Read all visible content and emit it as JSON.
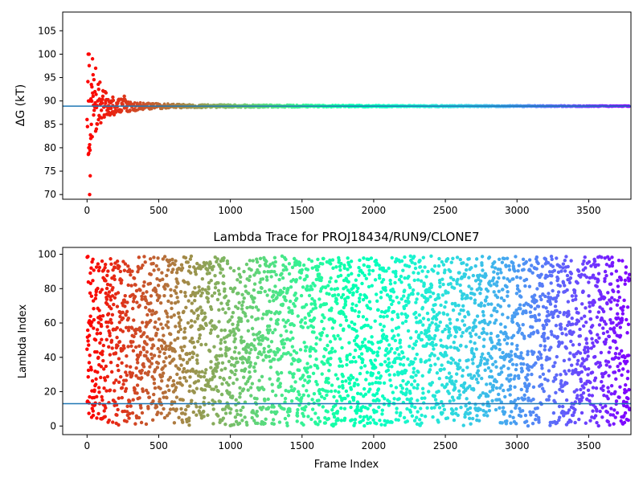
{
  "chart_data": [
    {
      "type": "scatter",
      "title": "",
      "xlabel": "",
      "ylabel": "ΔG (kT)",
      "xlim": [
        -170,
        3795
      ],
      "ylim": [
        69,
        109
      ],
      "xticks": [
        0,
        500,
        1000,
        1500,
        2000,
        2500,
        3000,
        3500
      ],
      "yticks": [
        70,
        75,
        80,
        85,
        90,
        95,
        100,
        105
      ],
      "grid": false,
      "colormap": "rainbow (red at frame 0 → purple at last frame)",
      "hline": {
        "y": 88.9,
        "color": "#1f77b4"
      },
      "series": [
        {
          "description": "converging free-energy estimate per frame",
          "points": [
            [
              8,
              100
            ],
            [
              14,
              100
            ],
            [
              20,
              90
            ],
            [
              10,
              90
            ],
            [
              16,
              80
            ],
            [
              12,
              80
            ],
            [
              18,
              70
            ],
            [
              22,
              74
            ],
            [
              26,
              82
            ],
            [
              30,
              85
            ],
            [
              34,
              93
            ],
            [
              38,
              99
            ],
            [
              42,
              91
            ],
            [
              46,
              87
            ],
            [
              50,
              88
            ],
            [
              55,
              92
            ],
            [
              60,
              97
            ],
            [
              65,
              84
            ],
            [
              70,
              89
            ],
            [
              80,
              86
            ],
            [
              90,
              94
            ],
            [
              100,
              88
            ],
            [
              110,
              91
            ],
            [
              120,
              87
            ],
            [
              130,
              90
            ],
            [
              140,
              88
            ],
            [
              150,
              89
            ],
            [
              160,
              87
            ],
            [
              170,
              90
            ],
            [
              180,
              89
            ],
            [
              200,
              88
            ],
            [
              220,
              90
            ],
            [
              240,
              88
            ],
            [
              260,
              91
            ],
            [
              280,
              89
            ],
            [
              300,
              88
            ],
            [
              350,
              89
            ],
            [
              400,
              88.5
            ],
            [
              500,
              89
            ],
            [
              600,
              88.8
            ],
            [
              800,
              88.6
            ],
            [
              1000,
              89.1
            ],
            [
              1200,
              88.7
            ],
            [
              1500,
              88.9
            ],
            [
              2000,
              88.9
            ],
            [
              2500,
              88.9
            ],
            [
              3000,
              88.9
            ],
            [
              3500,
              88.9
            ],
            [
              3780,
              88.9
            ]
          ],
          "envelope": [
            [
              0,
              12
            ],
            [
              50,
              6
            ],
            [
              100,
              4
            ],
            [
              150,
              2.5
            ],
            [
              200,
              2
            ],
            [
              280,
              1.5
            ],
            [
              400,
              0.8
            ],
            [
              700,
              0.4
            ],
            [
              1000,
              0.35
            ],
            [
              2000,
              0.2
            ],
            [
              3000,
              0.15
            ],
            [
              3785,
              0.1
            ]
          ]
        }
      ]
    },
    {
      "type": "scatter",
      "title": "Lambda Trace for PROJ18434/RUN9/CLONE7",
      "xlabel": "Frame Index",
      "ylabel": "Lambda Index",
      "xlim": [
        -170,
        3795
      ],
      "ylim": [
        -5,
        104
      ],
      "xticks": [
        0,
        500,
        1000,
        1500,
        2000,
        2500,
        3000,
        3500
      ],
      "yticks": [
        0,
        20,
        40,
        60,
        80,
        100
      ],
      "grid": false,
      "colormap": "rainbow (red at frame 0 → purple at last frame)",
      "hline": {
        "y": 13,
        "color": "#1f77b4"
      },
      "series": [
        {
          "description": "lambda index sampled at each frame (uniformly spread 0–100 over 0–3785 frames)",
          "frame_range": [
            0,
            3785
          ],
          "lambda_range": [
            0,
            99
          ],
          "n_points": 3786
        }
      ]
    }
  ]
}
